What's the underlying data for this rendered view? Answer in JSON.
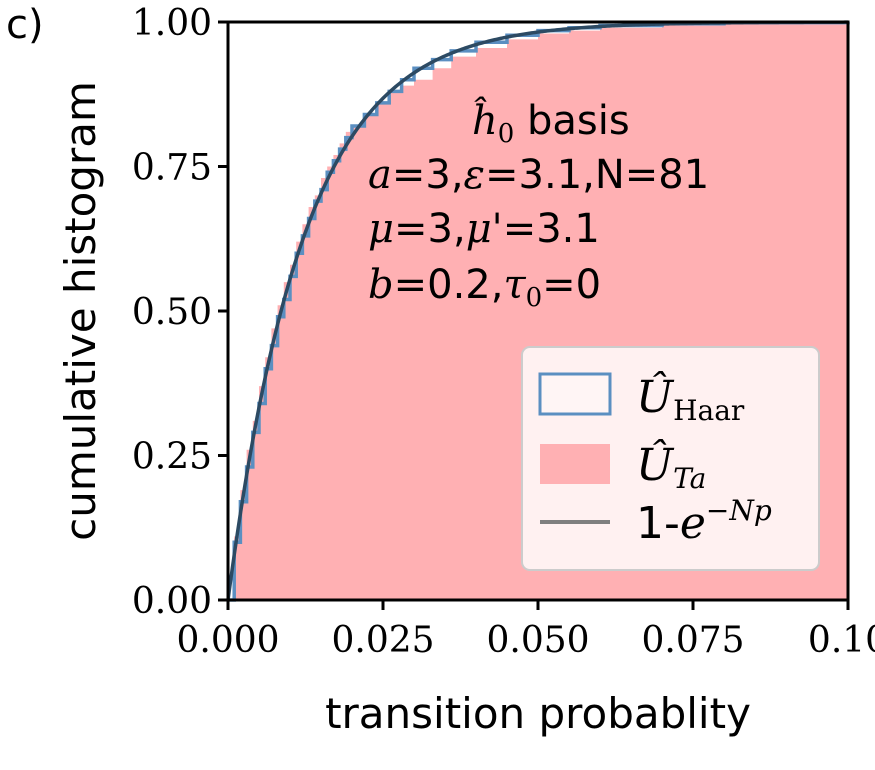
{
  "panel_label": "c)",
  "chart_data": {
    "type": "area",
    "title": "",
    "xlabel": "transition probablity",
    "ylabel": "cumulative histogram",
    "xlim": [
      0.0,
      0.1
    ],
    "ylim": [
      0.0,
      1.0
    ],
    "xticks": [
      "0.000",
      "0.025",
      "0.050",
      "0.075",
      "0.10"
    ],
    "yticks": [
      "0.00",
      "0.25",
      "0.50",
      "0.75",
      "1.00"
    ],
    "xtick_values": [
      0.0,
      0.025,
      0.05,
      0.075,
      0.1
    ],
    "ytick_values": [
      0.0,
      0.25,
      0.5,
      0.75,
      1.0
    ],
    "grid": false,
    "N": 81,
    "annotation": {
      "line1_math": "ĥ",
      "line1_sub": "0",
      "line1_text": " basis",
      "line2_a": "a",
      "line2_eq1": "=3,",
      "line2_eps": "ε",
      "line2_eq2": "=3.1,N=81",
      "line3_mu": "μ",
      "line3_eq1": "=3,",
      "line3_mup": "μ'",
      "line3_eq2": "=3.1",
      "line4_b": "b",
      "line4_eq1": "=0.2,",
      "line4_tau": "τ",
      "line4_sub": "0",
      "line4_eq2": "=0"
    },
    "legend": {
      "placement": "lower right",
      "entries": [
        {
          "symbol": "Û",
          "sub": "Haar"
        },
        {
          "symbol": "Û",
          "sub": "Ta"
        },
        {
          "text": "1-",
          "symbol": "e",
          "sup": "−Np"
        }
      ]
    },
    "series": [
      {
        "name": "Û_Haar",
        "kind": "step-outline",
        "x": [
          0.0,
          0.001,
          0.002,
          0.003,
          0.004,
          0.005,
          0.006,
          0.007,
          0.008,
          0.009,
          0.01,
          0.011,
          0.012,
          0.013,
          0.014,
          0.015,
          0.016,
          0.017,
          0.018,
          0.019,
          0.02,
          0.022,
          0.024,
          0.026,
          0.028,
          0.03,
          0.033,
          0.036,
          0.04,
          0.045,
          0.05,
          0.055,
          0.06,
          0.07,
          0.08,
          0.1
        ],
        "values": [
          0.0,
          0.1,
          0.17,
          0.23,
          0.29,
          0.34,
          0.4,
          0.44,
          0.49,
          0.52,
          0.56,
          0.6,
          0.63,
          0.66,
          0.69,
          0.71,
          0.74,
          0.76,
          0.78,
          0.8,
          0.82,
          0.84,
          0.86,
          0.88,
          0.9,
          0.92,
          0.935,
          0.95,
          0.965,
          0.977,
          0.985,
          0.99,
          0.994,
          0.997,
          0.999,
          1.0
        ]
      },
      {
        "name": "Û_Ta",
        "kind": "step-filled",
        "x": [
          0.0,
          0.001,
          0.002,
          0.003,
          0.004,
          0.005,
          0.006,
          0.007,
          0.008,
          0.009,
          0.01,
          0.011,
          0.012,
          0.013,
          0.014,
          0.015,
          0.016,
          0.017,
          0.018,
          0.019,
          0.02,
          0.022,
          0.024,
          0.026,
          0.028,
          0.03,
          0.033,
          0.036,
          0.04,
          0.045,
          0.05,
          0.055,
          0.06,
          0.07,
          0.08,
          0.1
        ],
        "values": [
          0.0,
          0.11,
          0.19,
          0.26,
          0.31,
          0.37,
          0.42,
          0.47,
          0.51,
          0.55,
          0.58,
          0.62,
          0.65,
          0.68,
          0.7,
          0.73,
          0.75,
          0.77,
          0.79,
          0.81,
          0.82,
          0.84,
          0.86,
          0.88,
          0.89,
          0.9,
          0.92,
          0.94,
          0.955,
          0.97,
          0.98,
          0.985,
          0.99,
          0.995,
          0.998,
          1.0
        ]
      },
      {
        "name": "1-e^{-Np}",
        "kind": "analytic",
        "formula": "1-exp(-N*p)"
      }
    ],
    "colors": {
      "haar_outline": "#5b8fc1",
      "ta_fill": "#ffb0b3",
      "theory_line": "#7f7f7f",
      "curve_dark": "#2c4a63",
      "axes": "#000000"
    }
  }
}
